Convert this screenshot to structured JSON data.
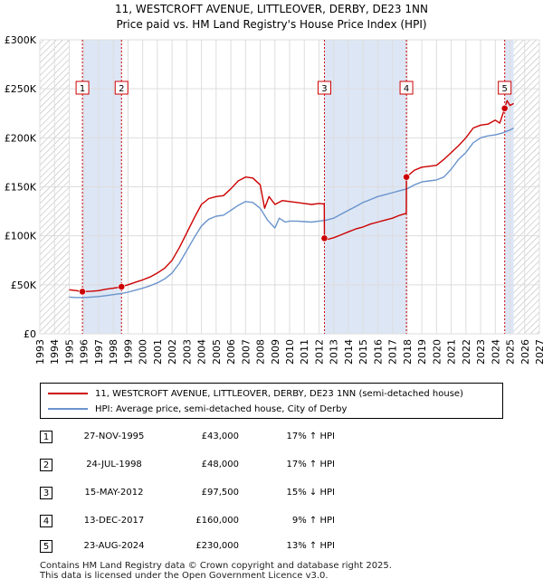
{
  "title": {
    "line1": "11, WESTCROFT AVENUE, LITTLEOVER, DERBY, DE23 1NN",
    "line2": "Price paid vs. HM Land Registry's House Price Index (HPI)"
  },
  "colors": {
    "property": "#cc0000",
    "hpi": "#6a94cc",
    "shade": "#dde6f5",
    "hatch": "#bbbbbb",
    "grid": "#dddddd",
    "marker_border": "#cc0000"
  },
  "chart_data": {
    "type": "line",
    "title": "11, WESTCROFT AVENUE, LITTLEOVER, DERBY, DE23 1NN — Price paid vs. HM Land Registry's House Price Index (HPI)",
    "xlabel": "",
    "ylabel": "",
    "xlim": [
      1993,
      2027
    ],
    "ylim": [
      0,
      300000
    ],
    "x_ticks": [
      1993,
      1994,
      1995,
      1996,
      1997,
      1998,
      1999,
      2000,
      2001,
      2002,
      2003,
      2004,
      2005,
      2006,
      2007,
      2008,
      2009,
      2010,
      2011,
      2012,
      2013,
      2014,
      2015,
      2016,
      2017,
      2018,
      2019,
      2020,
      2021,
      2022,
      2023,
      2024,
      2025,
      2026,
      2027
    ],
    "y_ticks": [
      0,
      50000,
      100000,
      150000,
      200000,
      250000,
      300000
    ],
    "y_tick_labels": [
      "£0",
      "£50K",
      "£100K",
      "£150K",
      "£200K",
      "£250K",
      "£300K"
    ],
    "data_start": 1995.0,
    "data_end": 2025.25,
    "shaded_ranges": [
      [
        1995.9,
        1998.56
      ],
      [
        2012.37,
        2017.95
      ],
      [
        2024.64,
        2025.25
      ]
    ],
    "series": [
      {
        "name": "11, WESTCROFT AVENUE, LITTLEOVER, DERBY, DE23 1NN (semi-detached house)",
        "color": "#cc0000",
        "x": [
          1995.0,
          1995.5,
          1995.9,
          1996.5,
          1997.0,
          1997.5,
          1998.0,
          1998.56,
          1999.0,
          1999.5,
          2000.0,
          2000.5,
          2001.0,
          2001.5,
          2002.0,
          2002.5,
          2003.0,
          2003.5,
          2004.0,
          2004.5,
          2005.0,
          2005.5,
          2006.0,
          2006.5,
          2007.0,
          2007.5,
          2008.0,
          2008.3,
          2008.6,
          2009.0,
          2009.5,
          2010.0,
          2010.5,
          2011.0,
          2011.5,
          2012.0,
          2012.36,
          2012.37,
          2012.5,
          2013.0,
          2013.5,
          2014.0,
          2014.5,
          2015.0,
          2015.5,
          2016.0,
          2016.5,
          2017.0,
          2017.5,
          2017.94,
          2017.95,
          2018.5,
          2019.0,
          2019.5,
          2020.0,
          2020.5,
          2021.0,
          2021.5,
          2022.0,
          2022.5,
          2023.0,
          2023.5,
          2024.0,
          2024.3,
          2024.64,
          2024.8,
          2025.0,
          2025.25
        ],
        "values": [
          45000,
          44000,
          43000,
          43500,
          44000,
          45500,
          46500,
          48000,
          50000,
          52500,
          55000,
          58000,
          62000,
          67000,
          75000,
          88000,
          103000,
          118000,
          132000,
          138000,
          140000,
          141000,
          148000,
          156000,
          160000,
          159000,
          152000,
          128000,
          140000,
          132000,
          136000,
          135000,
          134000,
          133000,
          132000,
          133000,
          132500,
          97500,
          96000,
          98000,
          101000,
          104000,
          107000,
          109000,
          112000,
          114000,
          116000,
          118000,
          121000,
          123000,
          160000,
          167000,
          170000,
          171000,
          172000,
          178000,
          185000,
          192000,
          200000,
          210000,
          213000,
          214000,
          218000,
          215000,
          230000,
          238000,
          233000,
          235000
        ]
      },
      {
        "name": "HPI: Average price, semi-detached house, City of Derby",
        "color": "#6a94cc",
        "x": [
          1995.0,
          1995.5,
          1996.0,
          1996.5,
          1997.0,
          1997.5,
          1998.0,
          1998.5,
          1999.0,
          1999.5,
          2000.0,
          2000.5,
          2001.0,
          2001.5,
          2002.0,
          2002.5,
          2003.0,
          2003.5,
          2004.0,
          2004.5,
          2005.0,
          2005.5,
          2006.0,
          2006.5,
          2007.0,
          2007.5,
          2008.0,
          2008.5,
          2009.0,
          2009.3,
          2009.7,
          2010.0,
          2010.5,
          2011.0,
          2011.5,
          2012.0,
          2012.5,
          2013.0,
          2013.5,
          2014.0,
          2014.5,
          2015.0,
          2015.5,
          2016.0,
          2016.5,
          2017.0,
          2017.5,
          2018.0,
          2018.5,
          2019.0,
          2019.5,
          2020.0,
          2020.5,
          2021.0,
          2021.5,
          2022.0,
          2022.5,
          2023.0,
          2023.5,
          2024.0,
          2024.5,
          2025.0,
          2025.25
        ],
        "values": [
          37500,
          37000,
          37000,
          37500,
          38000,
          39000,
          40000,
          41000,
          42500,
          44500,
          46500,
          49000,
          52000,
          56000,
          62000,
          72000,
          85000,
          98000,
          110000,
          117000,
          120000,
          121000,
          126000,
          131000,
          135000,
          134000,
          128000,
          116000,
          108000,
          118000,
          114000,
          115000,
          115000,
          114500,
          114000,
          115000,
          116000,
          118000,
          122000,
          126000,
          130000,
          134000,
          137000,
          140000,
          142000,
          144000,
          146000,
          148000,
          152000,
          155000,
          156000,
          157000,
          160000,
          168000,
          178000,
          185000,
          195000,
          200000,
          202000,
          203000,
          205000,
          208000,
          210000
        ]
      }
    ],
    "annotations": [
      {
        "label": "1",
        "x": 1995.9,
        "y": 43000
      },
      {
        "label": "2",
        "x": 1998.56,
        "y": 48000
      },
      {
        "label": "3",
        "x": 2012.37,
        "y": 97500
      },
      {
        "label": "4",
        "x": 2017.95,
        "y": 160000
      },
      {
        "label": "5",
        "x": 2024.64,
        "y": 230000
      }
    ]
  },
  "legend": {
    "property_label": "11, WESTCROFT AVENUE, LITTLEOVER, DERBY, DE23 1NN (semi-detached house)",
    "hpi_label": "HPI: Average price, semi-detached house, City of Derby"
  },
  "transactions": [
    {
      "num": "1",
      "date": "27-NOV-1995",
      "price": "£43,000",
      "hpi": "17% ↑ HPI"
    },
    {
      "num": "2",
      "date": "24-JUL-1998",
      "price": "£48,000",
      "hpi": "17% ↑ HPI"
    },
    {
      "num": "3",
      "date": "15-MAY-2012",
      "price": "£97,500",
      "hpi": "15% ↓ HPI"
    },
    {
      "num": "4",
      "date": "13-DEC-2017",
      "price": "£160,000",
      "hpi": "9% ↑ HPI"
    },
    {
      "num": "5",
      "date": "23-AUG-2024",
      "price": "£230,000",
      "hpi": "13% ↑ HPI"
    }
  ],
  "footer": {
    "line1": "Contains HM Land Registry data © Crown copyright and database right 2025.",
    "line2": "This data is licensed under the Open Government Licence v3.0."
  }
}
